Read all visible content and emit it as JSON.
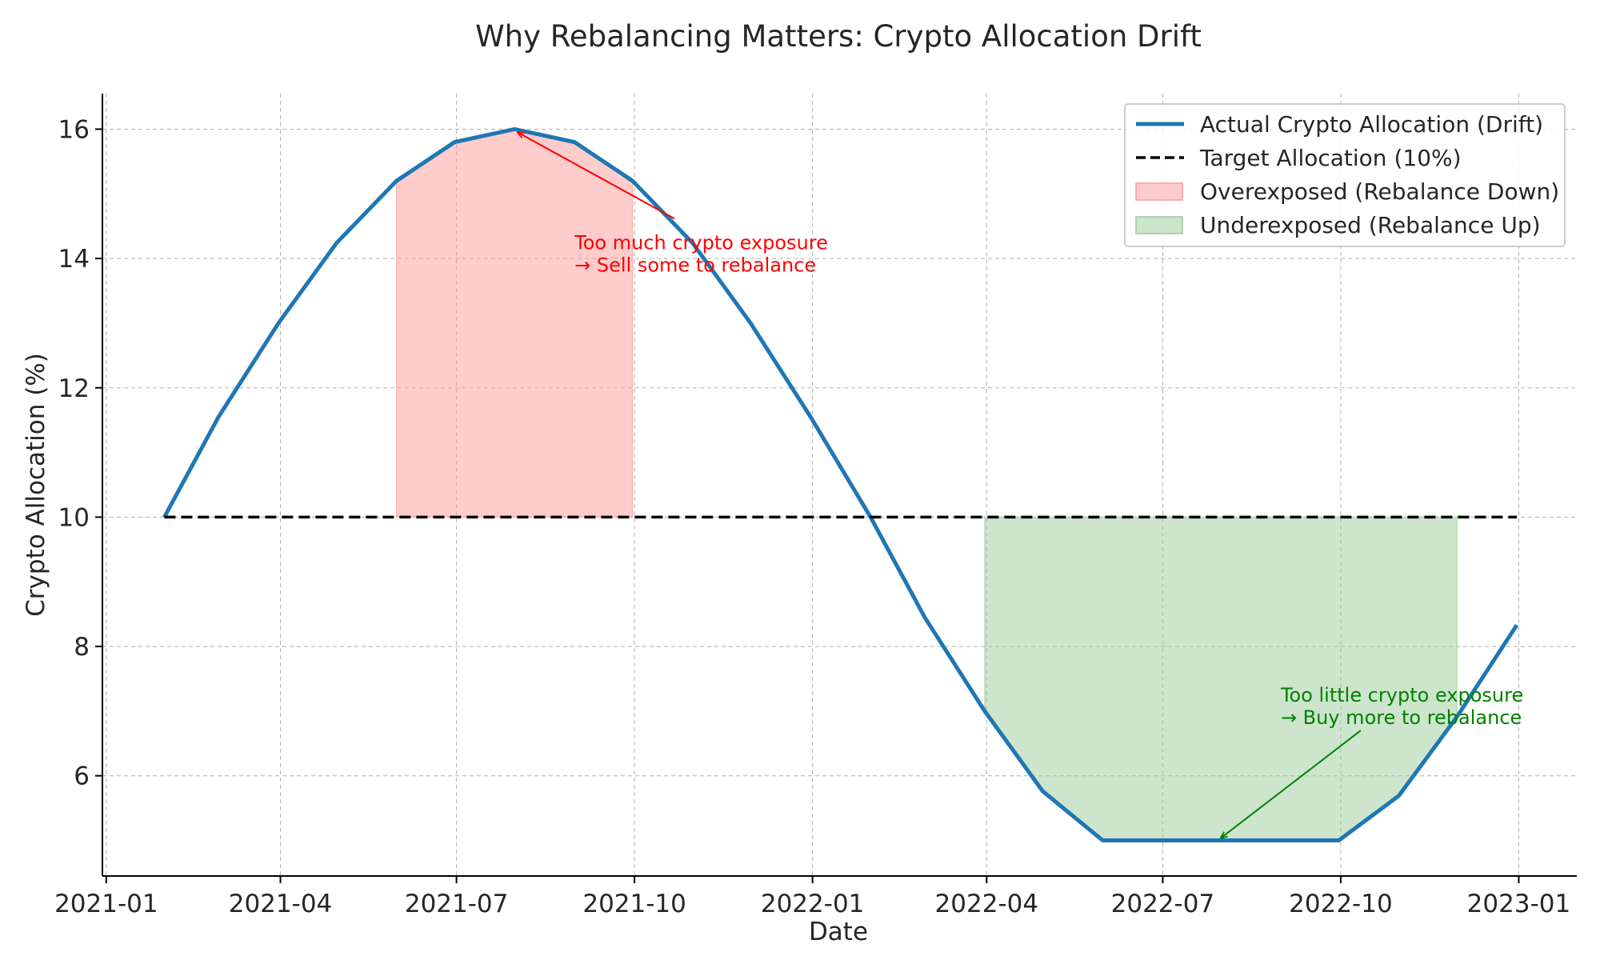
{
  "chart_data": {
    "type": "line",
    "title": "Why Rebalancing Matters: Crypto Allocation Drift",
    "xlabel": "Date",
    "ylabel": "Crypto Allocation (%)",
    "x_ticks": [
      "2021-01",
      "2021-04",
      "2021-07",
      "2021-10",
      "2022-01",
      "2022-04",
      "2022-07",
      "2022-10",
      "2023-01"
    ],
    "y_ticks": [
      6,
      8,
      10,
      12,
      14,
      16
    ],
    "xlim": [
      "2020-12-30",
      "2023-01-31"
    ],
    "ylim": [
      4.45,
      16.55
    ],
    "grid": true,
    "legend_position": "top-right",
    "x": [
      "2021-01-31",
      "2021-02-28",
      "2021-03-31",
      "2021-04-30",
      "2021-05-31",
      "2021-06-30",
      "2021-07-31",
      "2021-08-31",
      "2021-09-30",
      "2021-10-31",
      "2021-11-30",
      "2021-12-31",
      "2022-01-31",
      "2022-02-28",
      "2022-03-31",
      "2022-04-30",
      "2022-05-31",
      "2022-06-30",
      "2022-07-31",
      "2022-08-31",
      "2022-09-30",
      "2022-10-31",
      "2022-11-30",
      "2022-12-31"
    ],
    "series": [
      {
        "name": "Actual Crypto Allocation (Drift)",
        "color": "#1f77b4",
        "style": "solid",
        "values": [
          10.0,
          11.55,
          13.0,
          14.24,
          15.2,
          15.8,
          16.0,
          15.8,
          15.2,
          14.24,
          13.0,
          11.55,
          10.0,
          8.45,
          7.0,
          5.76,
          5.0,
          5.0,
          5.0,
          5.0,
          5.0,
          5.69,
          6.91,
          8.33
        ]
      },
      {
        "name": "Target Allocation (10%)",
        "color": "#000000",
        "style": "dashed",
        "values": [
          10,
          10,
          10,
          10,
          10,
          10,
          10,
          10,
          10,
          10,
          10,
          10,
          10,
          10,
          10,
          10,
          10,
          10,
          10,
          10,
          10,
          10,
          10,
          10
        ]
      }
    ],
    "regions": [
      {
        "name": "Overexposed (Rebalance Down)",
        "color": "#ff9999",
        "from": "2021-05-31",
        "to": "2021-09-30"
      },
      {
        "name": "Underexposed (Rebalance Up)",
        "color": "#99cc99",
        "from": "2022-03-31",
        "to": "2022-11-30"
      }
    ],
    "annotations": [
      {
        "lines": [
          "Too much crypto exposure",
          "→ Sell some to rebalance"
        ],
        "color": "#ff0000",
        "text_at": [
          "2021-08-31",
          13.75
        ],
        "arrow_to": [
          "2021-07-31",
          16.0
        ]
      },
      {
        "lines": [
          "Too little crypto exposure",
          "→ Buy more to rebalance"
        ],
        "color": "#008000",
        "text_at": [
          "2022-08-31",
          6.75
        ],
        "arrow_to": [
          "2022-07-31",
          5.0
        ]
      }
    ]
  }
}
